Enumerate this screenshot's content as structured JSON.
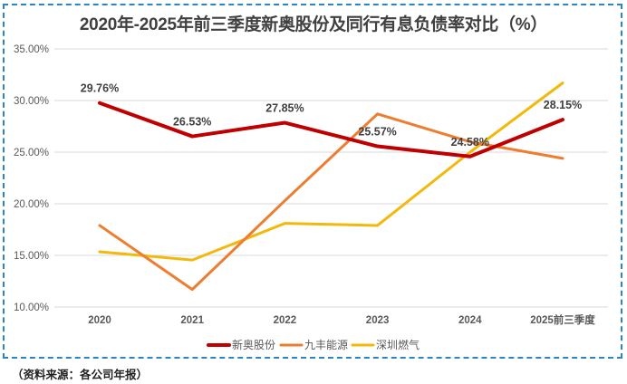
{
  "source_note": "（资料来源：各公司年报）",
  "chart_data": {
    "type": "line",
    "title": "2020年-2025年前三季度新奥股份及同行有息负债率对比（%）",
    "xlabel": "",
    "ylabel": "",
    "categories": [
      "2020",
      "2021",
      "2022",
      "2023",
      "2024",
      "2025前三季度"
    ],
    "ylim": [
      10,
      35
    ],
    "yticks": [
      10,
      15,
      20,
      25,
      30,
      35
    ],
    "ytick_labels": [
      "10.00%",
      "15.00%",
      "20.00%",
      "25.00%",
      "30.00%",
      "35.00%"
    ],
    "grid": true,
    "legend_position": "bottom",
    "series": [
      {
        "name": "新奥股份",
        "color": "#c00000",
        "values": [
          29.76,
          26.53,
          27.85,
          25.57,
          24.58,
          28.15
        ],
        "labels": [
          "29.76%",
          "26.53%",
          "27.85%",
          "25.57%",
          "24.58%",
          "28.15%"
        ]
      },
      {
        "name": "九丰能源",
        "color": "#ed7d31",
        "values": [
          17.9,
          11.7,
          20.3,
          28.7,
          26.0,
          24.4
        ]
      },
      {
        "name": "深圳燃气",
        "color": "#f2b90c",
        "values": [
          15.35,
          14.55,
          18.1,
          17.9,
          25.0,
          31.7
        ]
      }
    ]
  }
}
